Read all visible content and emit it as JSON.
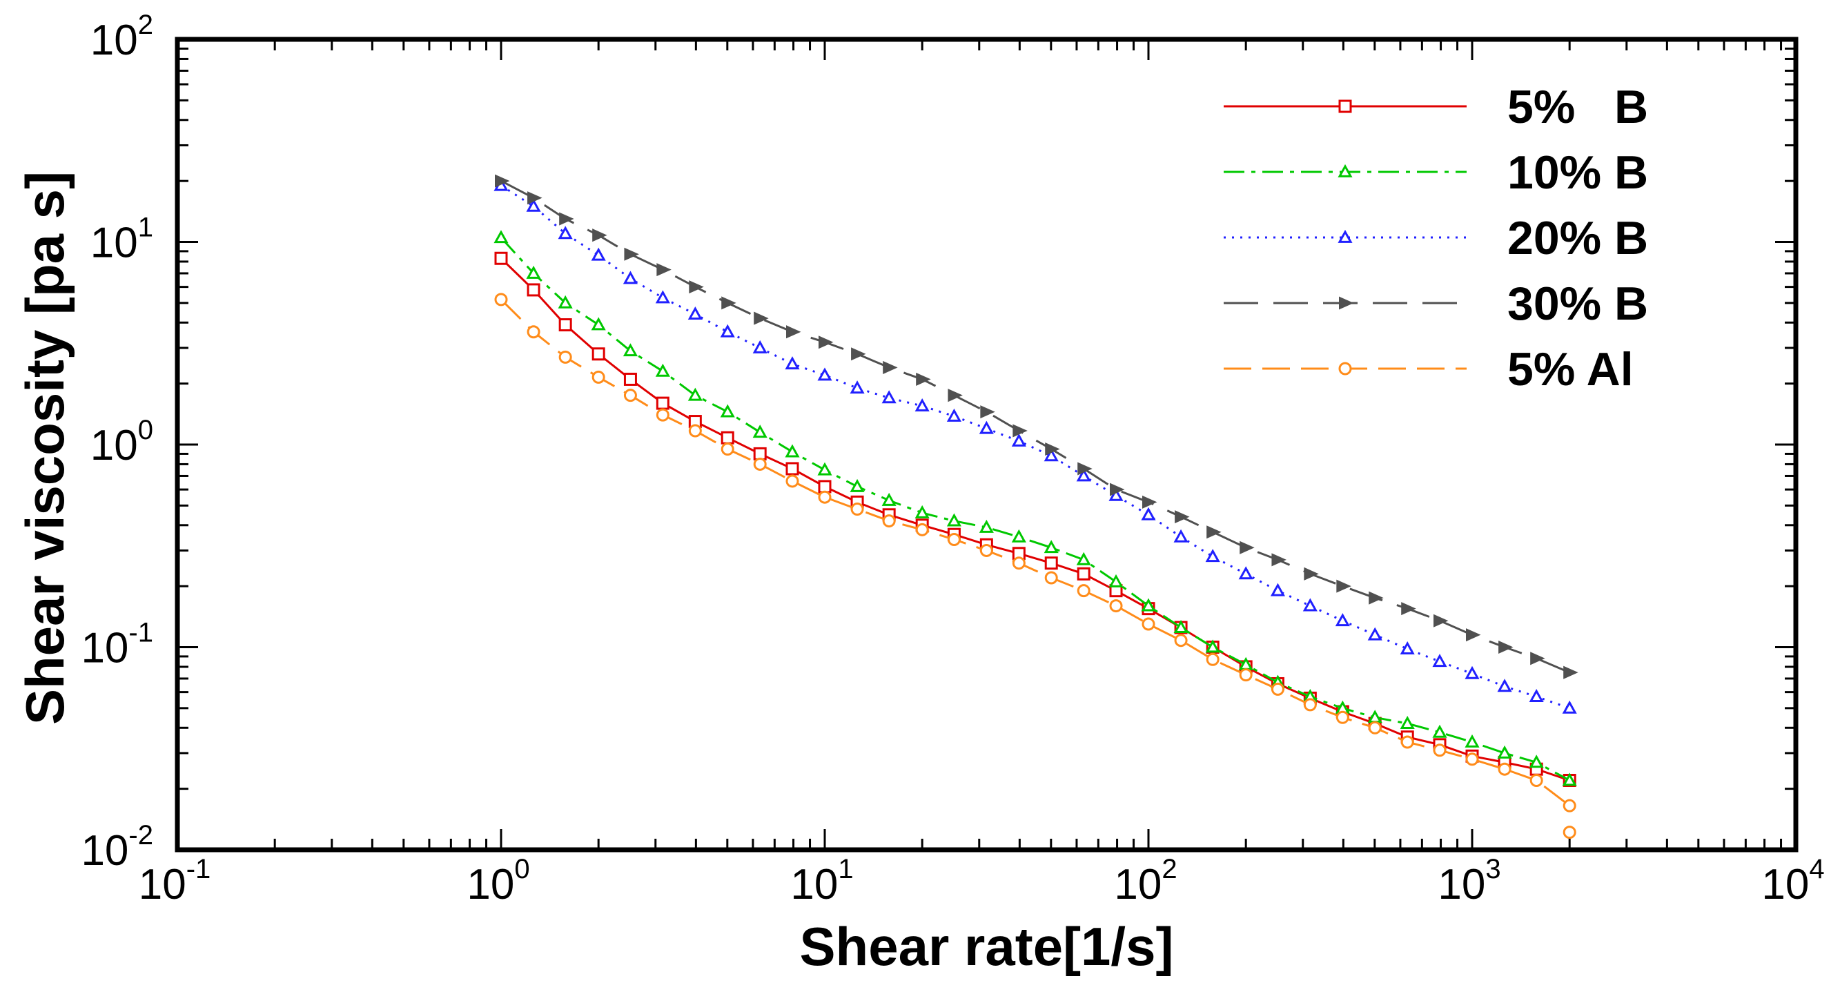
{
  "chart_data": {
    "type": "line",
    "xlabel": "Shear rate[1/s]",
    "ylabel": "Shear viscosity [pa s]",
    "xscale": "log",
    "yscale": "log",
    "xlim": [
      0.1,
      10000
    ],
    "ylim": [
      0.01,
      100
    ],
    "x_ticks": [
      {
        "base": "10",
        "exp": "-1",
        "value": 0.1
      },
      {
        "base": "10",
        "exp": "0",
        "value": 1
      },
      {
        "base": "10",
        "exp": "1",
        "value": 10
      },
      {
        "base": "10",
        "exp": "2",
        "value": 100
      },
      {
        "base": "10",
        "exp": "3",
        "value": 1000
      },
      {
        "base": "10",
        "exp": "4",
        "value": 10000
      }
    ],
    "y_ticks": [
      {
        "base": "10",
        "exp": "-2",
        "value": 0.01
      },
      {
        "base": "10",
        "exp": "-1",
        "value": 0.1
      },
      {
        "base": "10",
        "exp": "0",
        "value": 1
      },
      {
        "base": "10",
        "exp": "1",
        "value": 10
      },
      {
        "base": "10",
        "exp": "2",
        "value": 100
      }
    ],
    "grid": false,
    "legend_position": "top-right",
    "x": [
      1,
      1.26,
      1.58,
      2,
      2.51,
      3.16,
      3.98,
      5.01,
      6.31,
      7.94,
      10,
      12.6,
      15.8,
      20,
      25.1,
      31.6,
      39.8,
      50.1,
      63.1,
      79.4,
      100,
      126,
      158,
      200,
      251,
      316,
      398,
      501,
      631,
      794,
      1000,
      1260,
      1580,
      2000
    ],
    "series": [
      {
        "name": "5%   B",
        "color": "#e00000",
        "dash": "",
        "marker": "square",
        "values": [
          8.3,
          5.8,
          3.9,
          2.8,
          2.1,
          1.6,
          1.3,
          1.08,
          0.9,
          0.76,
          0.62,
          0.52,
          0.45,
          0.4,
          0.36,
          0.32,
          0.29,
          0.26,
          0.23,
          0.19,
          0.155,
          0.125,
          0.1,
          0.08,
          0.066,
          0.056,
          0.048,
          0.042,
          0.036,
          0.033,
          0.029,
          0.027,
          0.025,
          0.022
        ]
      },
      {
        "name": "10% B",
        "color": "#00c800",
        "dash": "30,10,6,10",
        "marker": "triangle-up",
        "values": [
          10.5,
          7,
          5,
          3.9,
          2.9,
          2.3,
          1.75,
          1.45,
          1.15,
          0.92,
          0.75,
          0.62,
          0.53,
          0.46,
          0.42,
          0.39,
          0.35,
          0.31,
          0.27,
          0.21,
          0.16,
          0.125,
          0.1,
          0.082,
          0.067,
          0.057,
          0.05,
          0.045,
          0.042,
          0.038,
          0.034,
          0.03,
          0.027,
          0.022
        ]
      },
      {
        "name": "20% B",
        "color": "#2020ff",
        "dash": "3,9",
        "marker": "triangle-up",
        "values": [
          19,
          15,
          11,
          8.6,
          6.6,
          5.3,
          4.4,
          3.6,
          3,
          2.5,
          2.2,
          1.9,
          1.7,
          1.55,
          1.38,
          1.2,
          1.04,
          0.88,
          0.7,
          0.56,
          0.45,
          0.35,
          0.28,
          0.23,
          0.19,
          0.16,
          0.135,
          0.115,
          0.098,
          0.085,
          0.074,
          0.064,
          0.057,
          0.05
        ]
      },
      {
        "name": "30% B",
        "color": "#505050",
        "dash": "50,22",
        "marker": "triangle-right",
        "values": [
          20,
          16.5,
          13,
          10.8,
          8.7,
          7.3,
          6,
          5,
          4.2,
          3.6,
          3.2,
          2.8,
          2.4,
          2.1,
          1.75,
          1.45,
          1.17,
          0.95,
          0.76,
          0.6,
          0.52,
          0.44,
          0.37,
          0.31,
          0.27,
          0.23,
          0.2,
          0.175,
          0.155,
          0.135,
          0.115,
          0.1,
          0.088,
          0.075
        ]
      },
      {
        "name": "5% Al",
        "color": "#ff8c1a",
        "dash": "40,16",
        "marker": "circle",
        "values": [
          5.2,
          3.6,
          2.7,
          2.15,
          1.75,
          1.4,
          1.17,
          0.95,
          0.8,
          0.66,
          0.55,
          0.48,
          0.42,
          0.38,
          0.34,
          0.3,
          0.26,
          0.22,
          0.19,
          0.16,
          0.13,
          0.108,
          0.087,
          0.073,
          0.062,
          0.052,
          0.045,
          0.04,
          0.034,
          0.031,
          0.028,
          0.025,
          0.022,
          0.0165
        ]
      }
    ],
    "extra_points": [
      {
        "series": "5% Al",
        "x": 2000,
        "y": 0.0122
      }
    ]
  }
}
